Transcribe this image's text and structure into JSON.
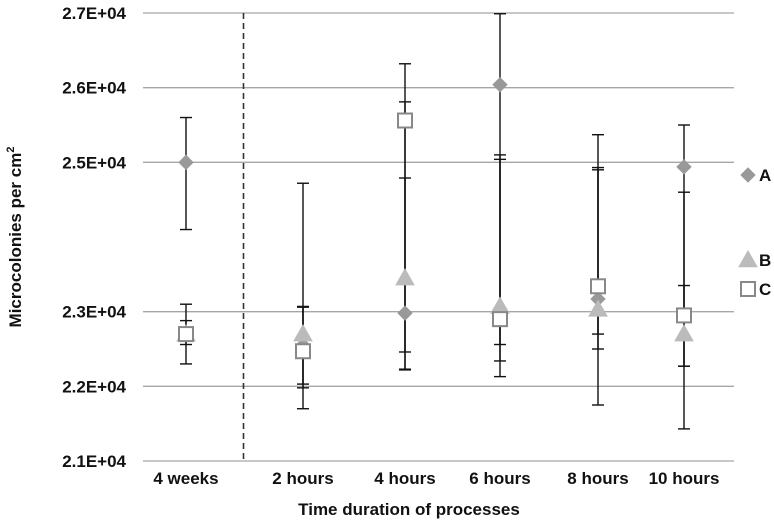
{
  "chart_data": {
    "type": "scatter",
    "xlabel": "Time duration of processes",
    "ylabel_main": "Microcolonies per cm",
    "ylabel_sup": "2",
    "categories": [
      "4 weeks",
      "2 hours",
      "4 hours",
      "6 hours",
      "8 hours",
      "10 hours"
    ],
    "y_ticks": [
      {
        "value": 21000,
        "label": "2.1E+04"
      },
      {
        "value": 22000,
        "label": "2.2E+04"
      },
      {
        "value": 23000,
        "label": "2.3E+04"
      },
      {
        "value": 25000,
        "label": "2.5E+04"
      },
      {
        "value": 26000,
        "label": "2.6E+04"
      },
      {
        "value": 27000,
        "label": "2.7E+04"
      }
    ],
    "ylim": [
      21000,
      27000
    ],
    "grid": true,
    "divider_after_category": 0,
    "legend_position": "right",
    "series": [
      {
        "name": "A",
        "marker": "diamond",
        "color": "#999999",
        "values": [
          25000,
          22550,
          22980,
          26040,
          23170,
          24940
        ],
        "err_low": [
          24100,
          21700,
          22230,
          22130,
          21750,
          21430
        ],
        "err_high": [
          25600,
          24720,
          26320,
          26990,
          25370,
          25500
        ]
      },
      {
        "name": "B",
        "marker": "triangle",
        "color": "#bbbbbb",
        "values": [
          22700,
          22700,
          23450,
          23070,
          23030,
          22700
        ],
        "err_low": [
          22300,
          21980,
          22220,
          22340,
          22700,
          22270
        ],
        "err_high": [
          23100,
          23070,
          24790,
          25040,
          24930,
          24600
        ]
      },
      {
        "name": "C",
        "marker": "square",
        "color": "#888888",
        "values": [
          22700,
          22470,
          25560,
          22900,
          23340,
          22950
        ],
        "err_low": [
          22560,
          22030,
          22460,
          22560,
          22500,
          22270
        ],
        "err_high": [
          22880,
          23060,
          25810,
          25100,
          24900,
          23350
        ]
      }
    ]
  }
}
